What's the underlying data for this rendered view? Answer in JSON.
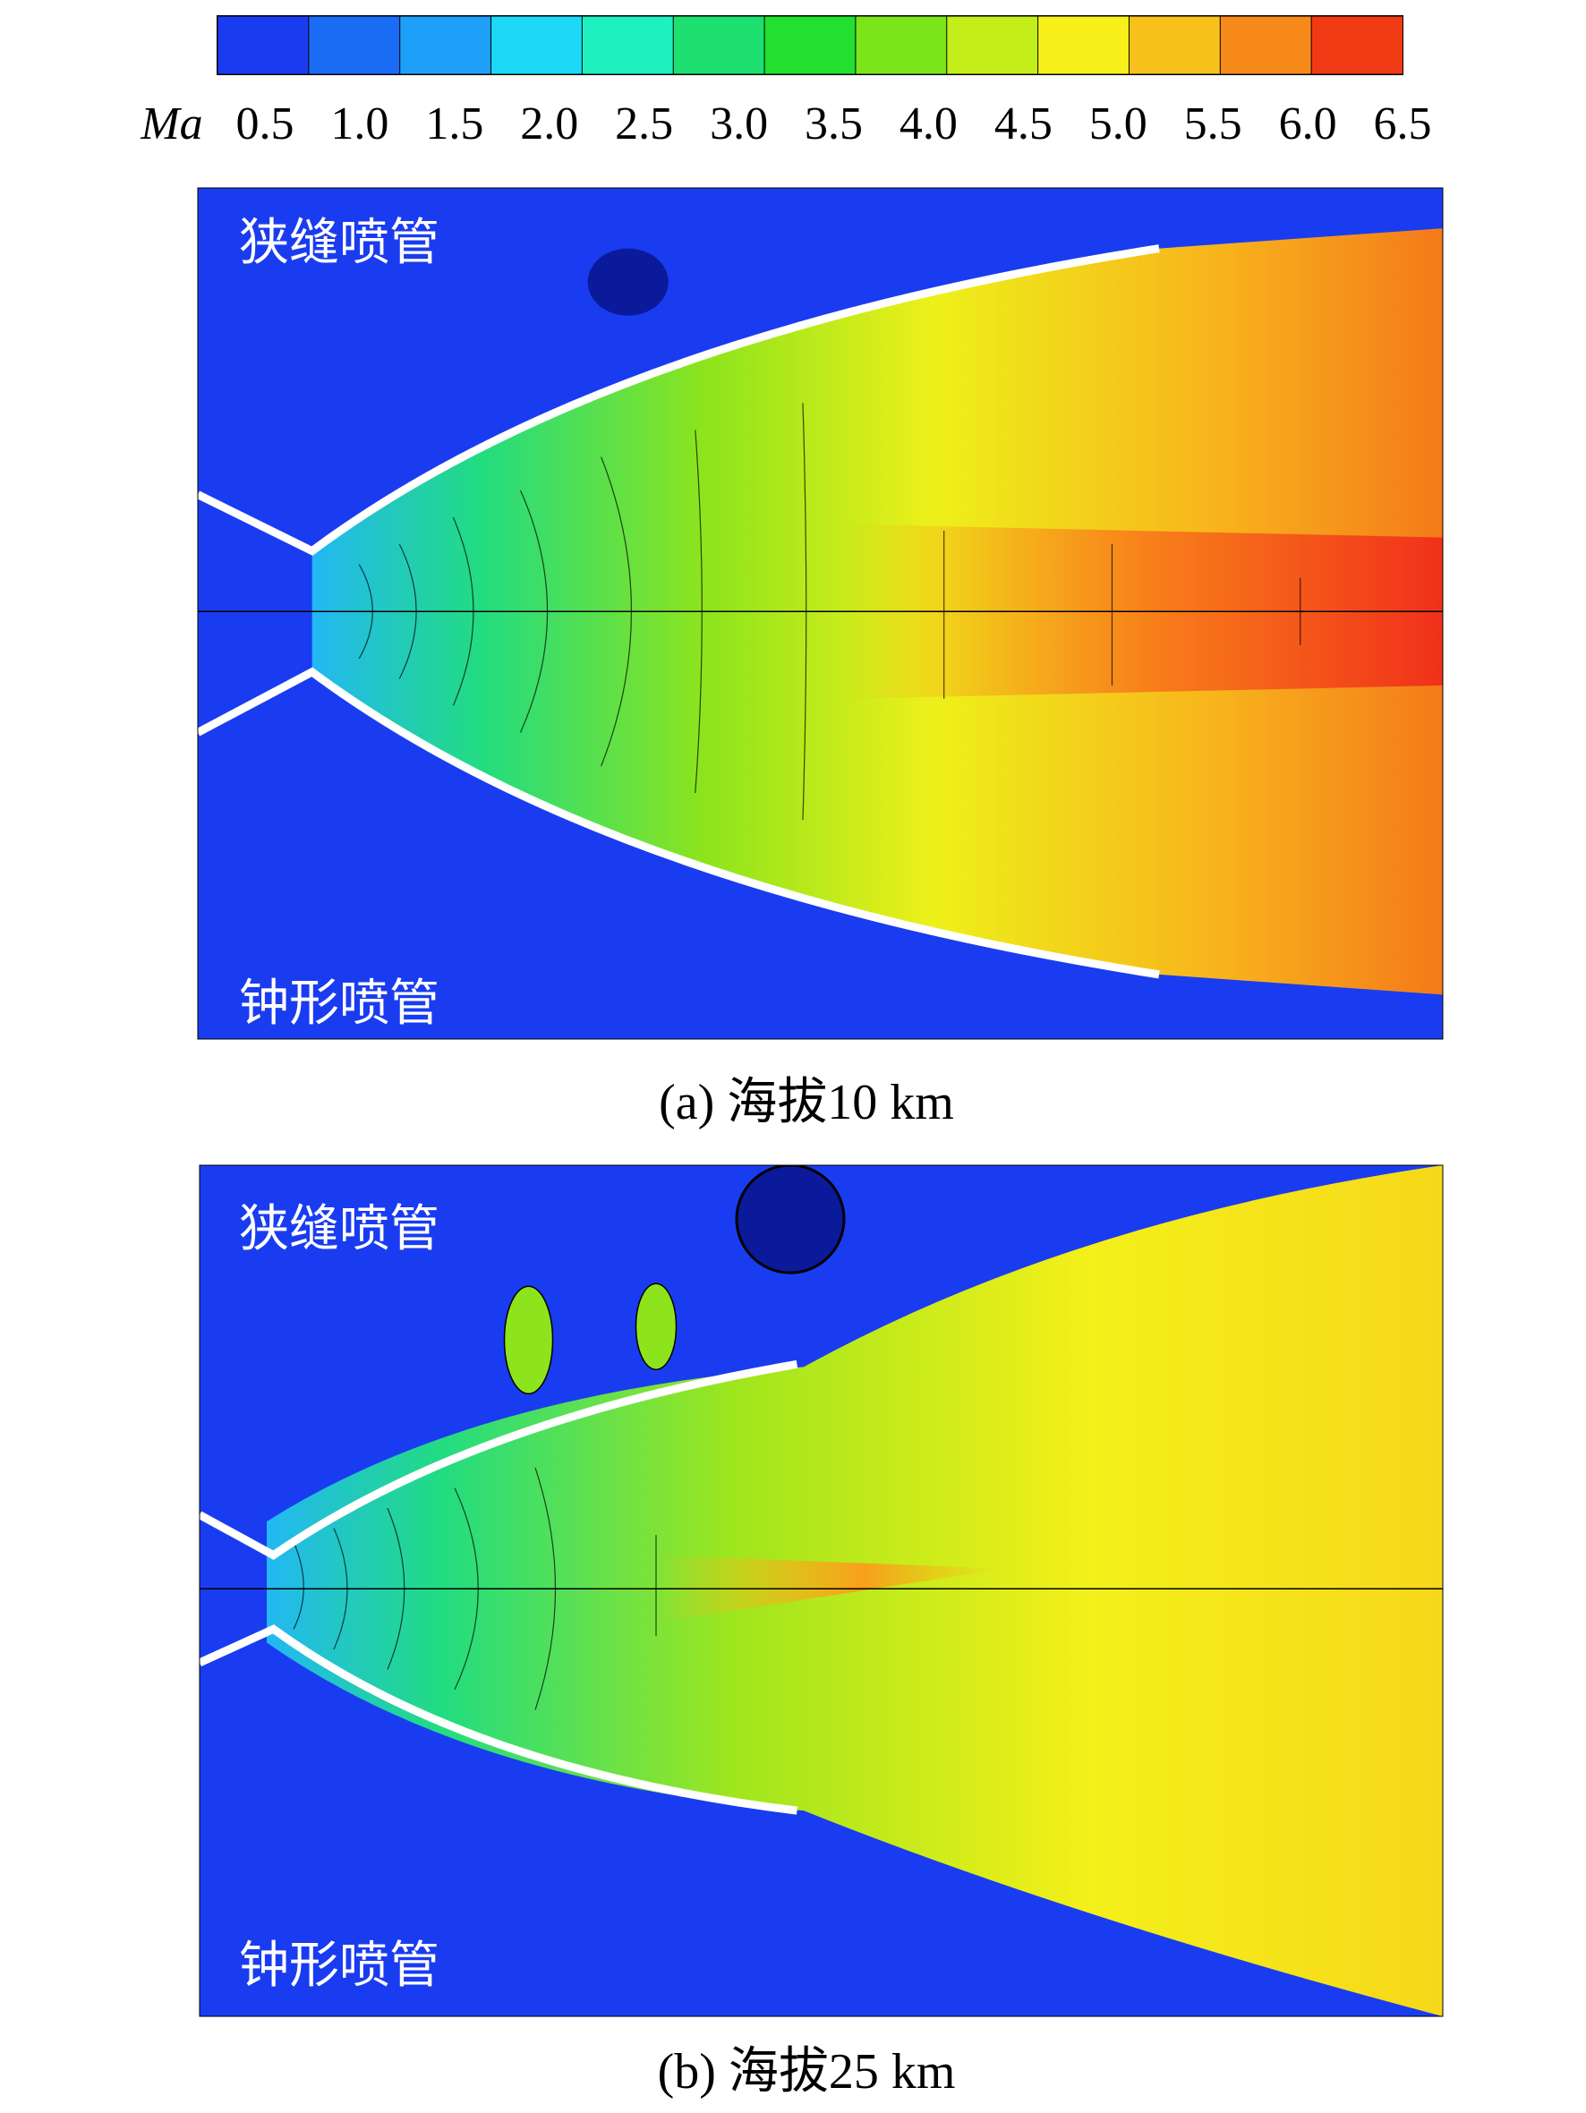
{
  "colorbar": {
    "label": "Ma",
    "ticks": [
      "0.5",
      "1.0",
      "1.5",
      "2.0",
      "2.5",
      "3.0",
      "3.5",
      "4.0",
      "4.5",
      "5.0",
      "5.5",
      "6.0",
      "6.5"
    ],
    "colors": [
      "#1a3cf0",
      "#1a6cf5",
      "#1ea0f8",
      "#1ed8f8",
      "#1ef0c0",
      "#1ee070",
      "#22e030",
      "#7ae61a",
      "#c4ee1a",
      "#f8f01a",
      "#f8c01a",
      "#f88a1a",
      "#f03a14"
    ]
  },
  "panels": [
    {
      "top_label": "狭缝喷管",
      "bottom_label": "钟形喷管",
      "caption": "(a) 海拔10 km"
    },
    {
      "top_label": "狭缝喷管",
      "bottom_label": "钟形喷管",
      "caption": "(b) 海拔25 km"
    }
  ]
}
